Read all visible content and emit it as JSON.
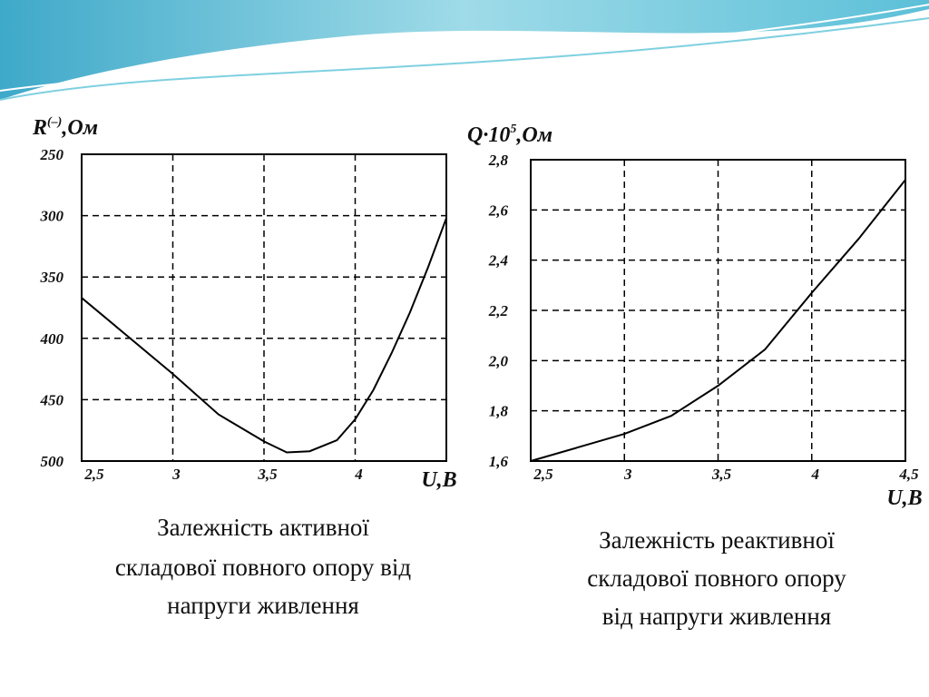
{
  "chart_data": [
    {
      "type": "line",
      "ylabel": {
        "base": "R",
        "sup": "(–)",
        "unit": ",Ом"
      },
      "xlabel": "U,B",
      "x": [
        2.5,
        2.75,
        3.0,
        3.25,
        3.5,
        3.625,
        3.75,
        3.9,
        4.0,
        4.1,
        4.2,
        4.3,
        4.4,
        4.5
      ],
      "values": [
        367,
        398,
        429,
        462,
        484,
        493,
        492,
        483,
        466,
        442,
        412,
        379,
        342,
        302
      ],
      "color": "#000000",
      "xlim": [
        2.5,
        4.5
      ],
      "xticks": [
        {
          "value": 2.5,
          "label": "2,5"
        },
        3,
        {
          "value": 3.5,
          "label": "3,5"
        },
        4
      ],
      "ylim": [
        500,
        250
      ],
      "yticks": [
        250,
        300,
        350,
        400,
        450,
        500
      ],
      "grid": true,
      "caption": [
        "Залежність активної",
        "складової повного опору від",
        "напруги живлення"
      ]
    },
    {
      "type": "line",
      "ylabel": {
        "base": "Q·10",
        "sup": "5",
        "unit": ",Ом"
      },
      "xlabel": "U,B",
      "x": [
        2.5,
        2.75,
        3.0,
        3.25,
        3.5,
        3.75,
        4.0,
        4.25,
        4.5
      ],
      "values": [
        1.6,
        1.654,
        1.708,
        1.78,
        1.9,
        2.044,
        2.27,
        2.485,
        2.72
      ],
      "color": "#000000",
      "xlim": [
        2.5,
        4.5
      ],
      "xticks": [
        {
          "value": 2.5,
          "label": "2,5"
        },
        3,
        {
          "value": 3.5,
          "label": "3,5"
        },
        4,
        {
          "value": 4.5,
          "label": "4,5"
        }
      ],
      "ylim": [
        1.6,
        2.8
      ],
      "yticks": [
        {
          "value": 1.6,
          "label": "1,6"
        },
        {
          "value": 1.8,
          "label": "1,8"
        },
        {
          "value": 2.0,
          "label": "2,0"
        },
        {
          "value": 2.2,
          "label": "2,2"
        },
        {
          "value": 2.4,
          "label": "2,4"
        },
        {
          "value": 2.6,
          "label": "2,6"
        },
        {
          "value": 2.8,
          "label": "2,8"
        }
      ],
      "grid": true,
      "caption": [
        "Залежність реактивної",
        "складової повного опору",
        "від напруги живлення"
      ]
    }
  ]
}
